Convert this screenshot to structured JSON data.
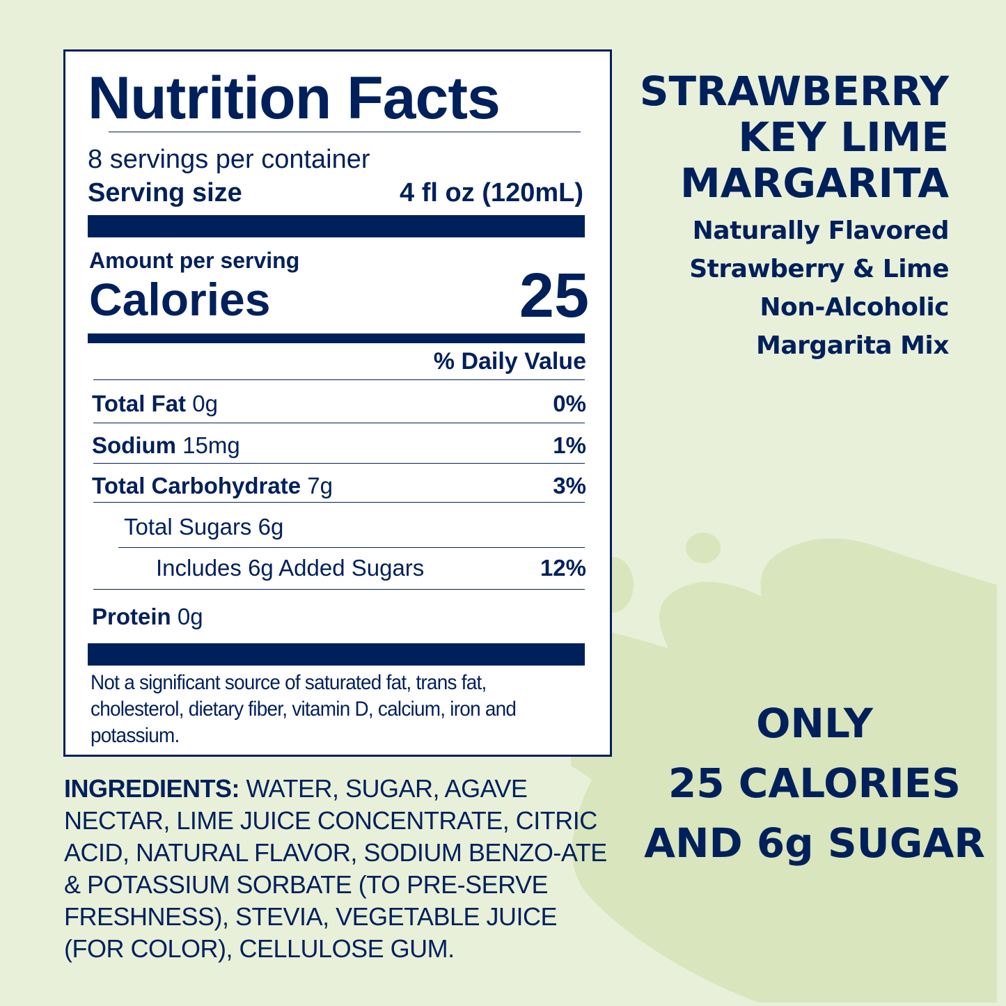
{
  "colors": {
    "background": "#e9f0d9",
    "splash": "#d9e5bc",
    "navy": "#00205b"
  },
  "nutrition": {
    "title": "Nutrition Facts",
    "servings": "8 servings per container",
    "serving_size_label": "Serving size",
    "serving_size_value": "4 fl oz (120mL)",
    "amount_per_serving": "Amount per serving",
    "calories_label": "Calories",
    "calories_value": "25",
    "dv_header": "% Daily Value",
    "rows": [
      {
        "label": "Total Fat",
        "amount": "0g",
        "dv": "0%"
      },
      {
        "label": "Sodium",
        "amount": "15mg",
        "dv": "1%"
      },
      {
        "label": "Total Carbohydrate",
        "amount": "7g",
        "dv": "3%"
      },
      {
        "label": "Total Sugars 6g"
      },
      {
        "label": "Includes 6g Added Sugars",
        "dv": "12%"
      },
      {
        "label": "Protein",
        "amount": "0g"
      }
    ],
    "footnote_lines": [
      "Not a significant source of saturated fat, trans fat,",
      "cholesterol, dietary fiber, vitamin D, calcium, iron and",
      "potassium."
    ]
  },
  "ingredients": {
    "label": "INGREDIENTS:",
    "text": "WATER, SUGAR, AGAVE NECTAR, LIME JUICE CONCENTRATE, CITRIC ACID, NATURAL FLAVOR, SODIUM BENZO-ATE & POTASSIUM SORBATE (TO PRE-SERVE FRESHNESS), STEVIA, VEGETABLE JUICE (FOR COLOR), CELLULOSE GUM."
  },
  "product": {
    "name_lines": [
      "STRAWBERRY",
      "KEY LIME",
      "MARGARITA"
    ],
    "description_lines": [
      "Naturally Flavored",
      "Strawberry & Lime",
      "Non-Alcoholic",
      "Margarita Mix"
    ]
  },
  "callout": {
    "lines": [
      "ONLY",
      "25 CALORIES",
      "AND 6g SUGAR"
    ]
  }
}
